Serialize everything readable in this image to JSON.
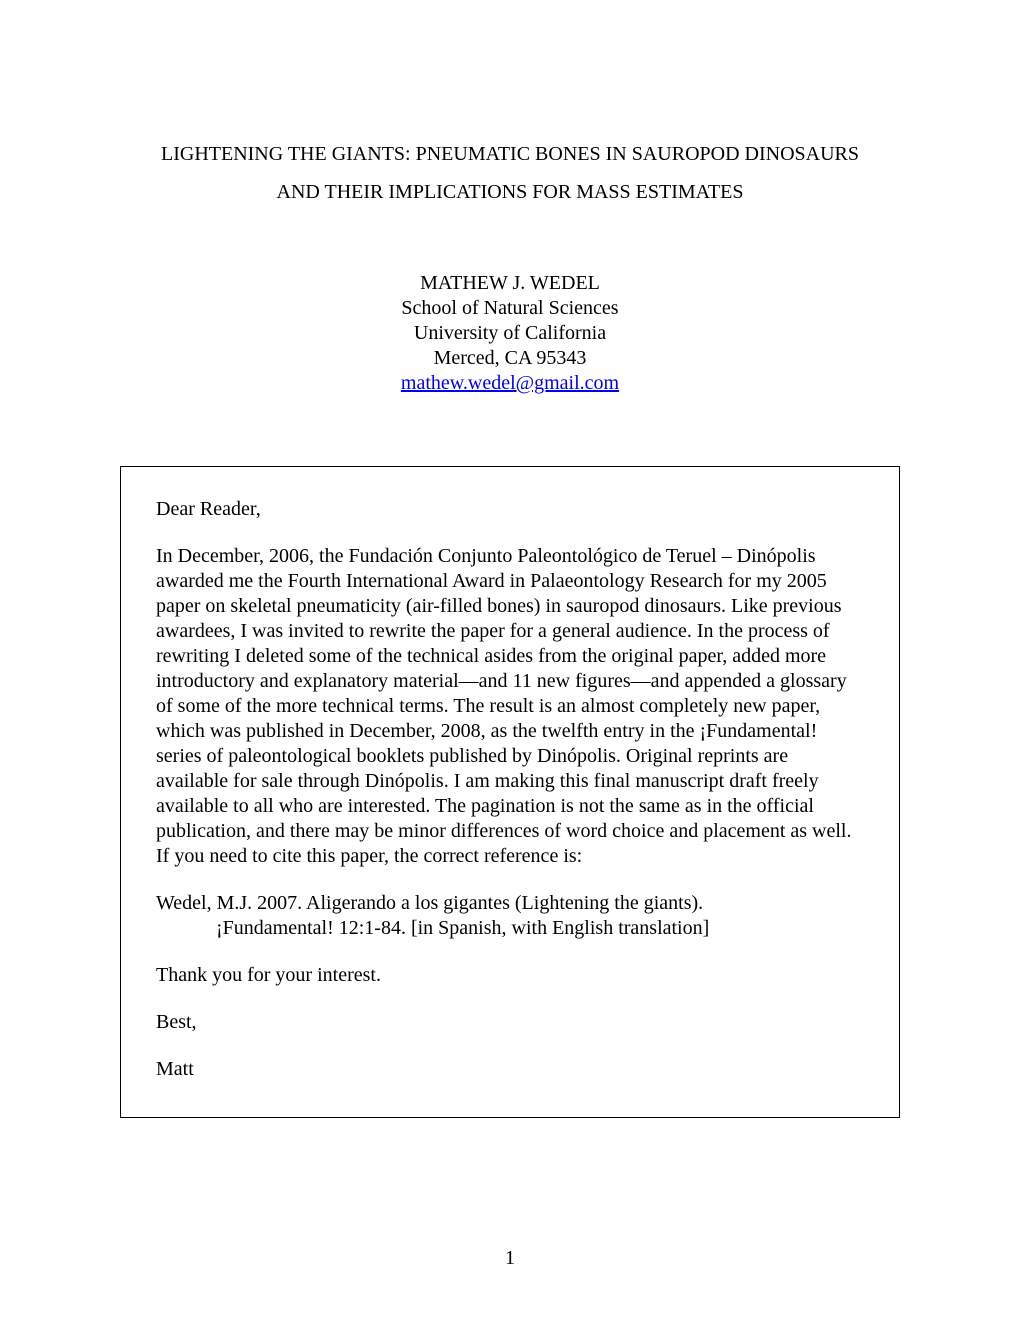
{
  "title": {
    "line1": "LIGHTENING THE GIANTS: PNEUMATIC BONES IN SAUROPOD DINOSAURS",
    "line2": "AND THEIR IMPLICATIONS FOR MASS ESTIMATES"
  },
  "author": {
    "name": "MATHEW J. WEDEL",
    "affiliation1": "School of Natural Sciences",
    "affiliation2": "University of California",
    "affiliation3": "Merced, CA 95343",
    "email": "mathew.wedel@gmail.com"
  },
  "letter": {
    "greeting": "Dear Reader,",
    "body": "In December, 2006, the Fundación Conjunto Paleontológico de Teruel – Dinópolis awarded me the Fourth International Award in Palaeontology Research for my 2005 paper on skeletal pneumaticity (air-filled bones) in sauropod dinosaurs. Like previous awardees, I was invited to rewrite the paper for a general audience. In the process of rewriting I deleted some of the technical asides from the original paper, added more introductory and explanatory material—and 11 new figures—and appended a glossary of some of the more technical terms. The result is an almost completely new paper, which was published in December, 2008, as the twelfth entry in the ¡Fundamental! series of paleontological booklets published by Dinópolis. Original reprints are available for sale through Dinópolis. I am making this final manuscript draft freely available to all who are interested. The pagination is not the same as in the official publication, and there may be minor differences of word choice and placement as well. If you need to cite this paper, the correct reference is:",
    "citation_line1": "Wedel, M.J. 2007. Aligerando a los gigantes (Lightening the giants).",
    "citation_line2": "¡Fundamental! 12:1-84. [in Spanish, with English translation]",
    "thanks": "Thank you for your interest.",
    "closing": "Best,",
    "signature": "Matt"
  },
  "page_number": "1",
  "colors": {
    "background": "#ffffff",
    "text": "#000000",
    "link": "#0000ee",
    "border": "#000000"
  },
  "typography": {
    "font_family": "Times New Roman",
    "body_fontsize": 20,
    "title_fontsize": 20
  }
}
